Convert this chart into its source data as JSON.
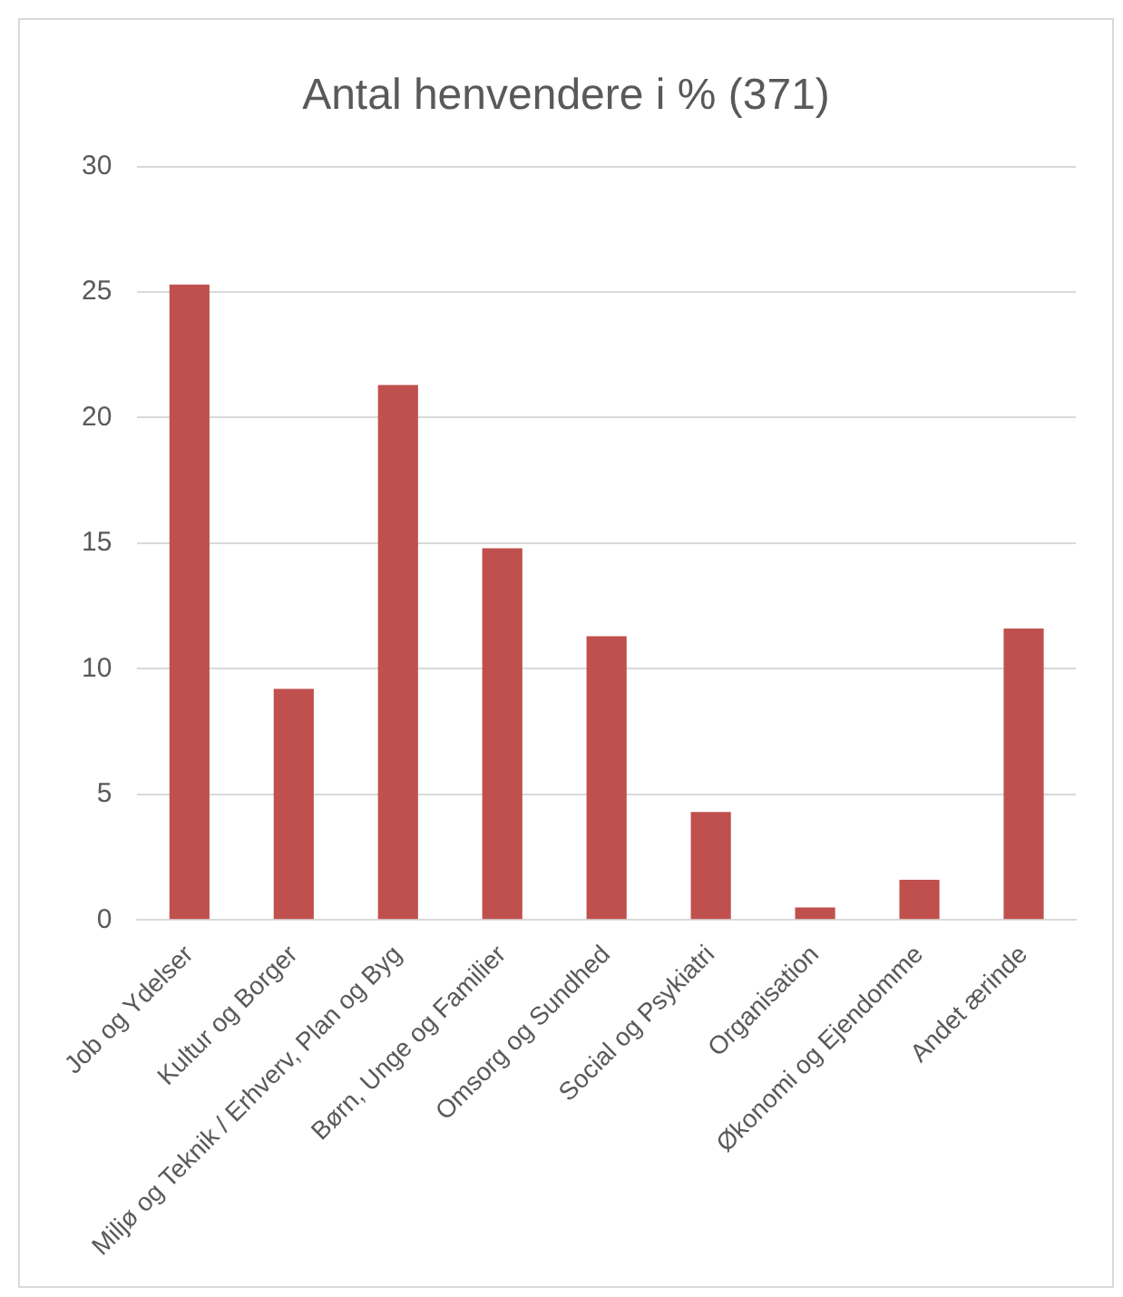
{
  "chart_data": {
    "type": "bar",
    "title": "Antal henvendere i % (371)",
    "categories": [
      "Job og Ydelser",
      "Kultur og Borger",
      "Miljø og Teknik / Erhverv, Plan og Byg",
      "Børn, Unge og Familier",
      "Omsorg og Sundhed",
      "Social og Psykiatri",
      "Organisation",
      "Økonomi og Ejendomme",
      "Andet ærinde"
    ],
    "values": [
      25.3,
      9.2,
      21.3,
      14.8,
      11.3,
      4.3,
      0.5,
      1.6,
      11.6
    ],
    "color": "#c0504d",
    "ylim": [
      0,
      30
    ],
    "yticks": [
      0,
      5,
      10,
      15,
      20,
      25,
      30
    ],
    "grid": "y",
    "legend": false
  }
}
